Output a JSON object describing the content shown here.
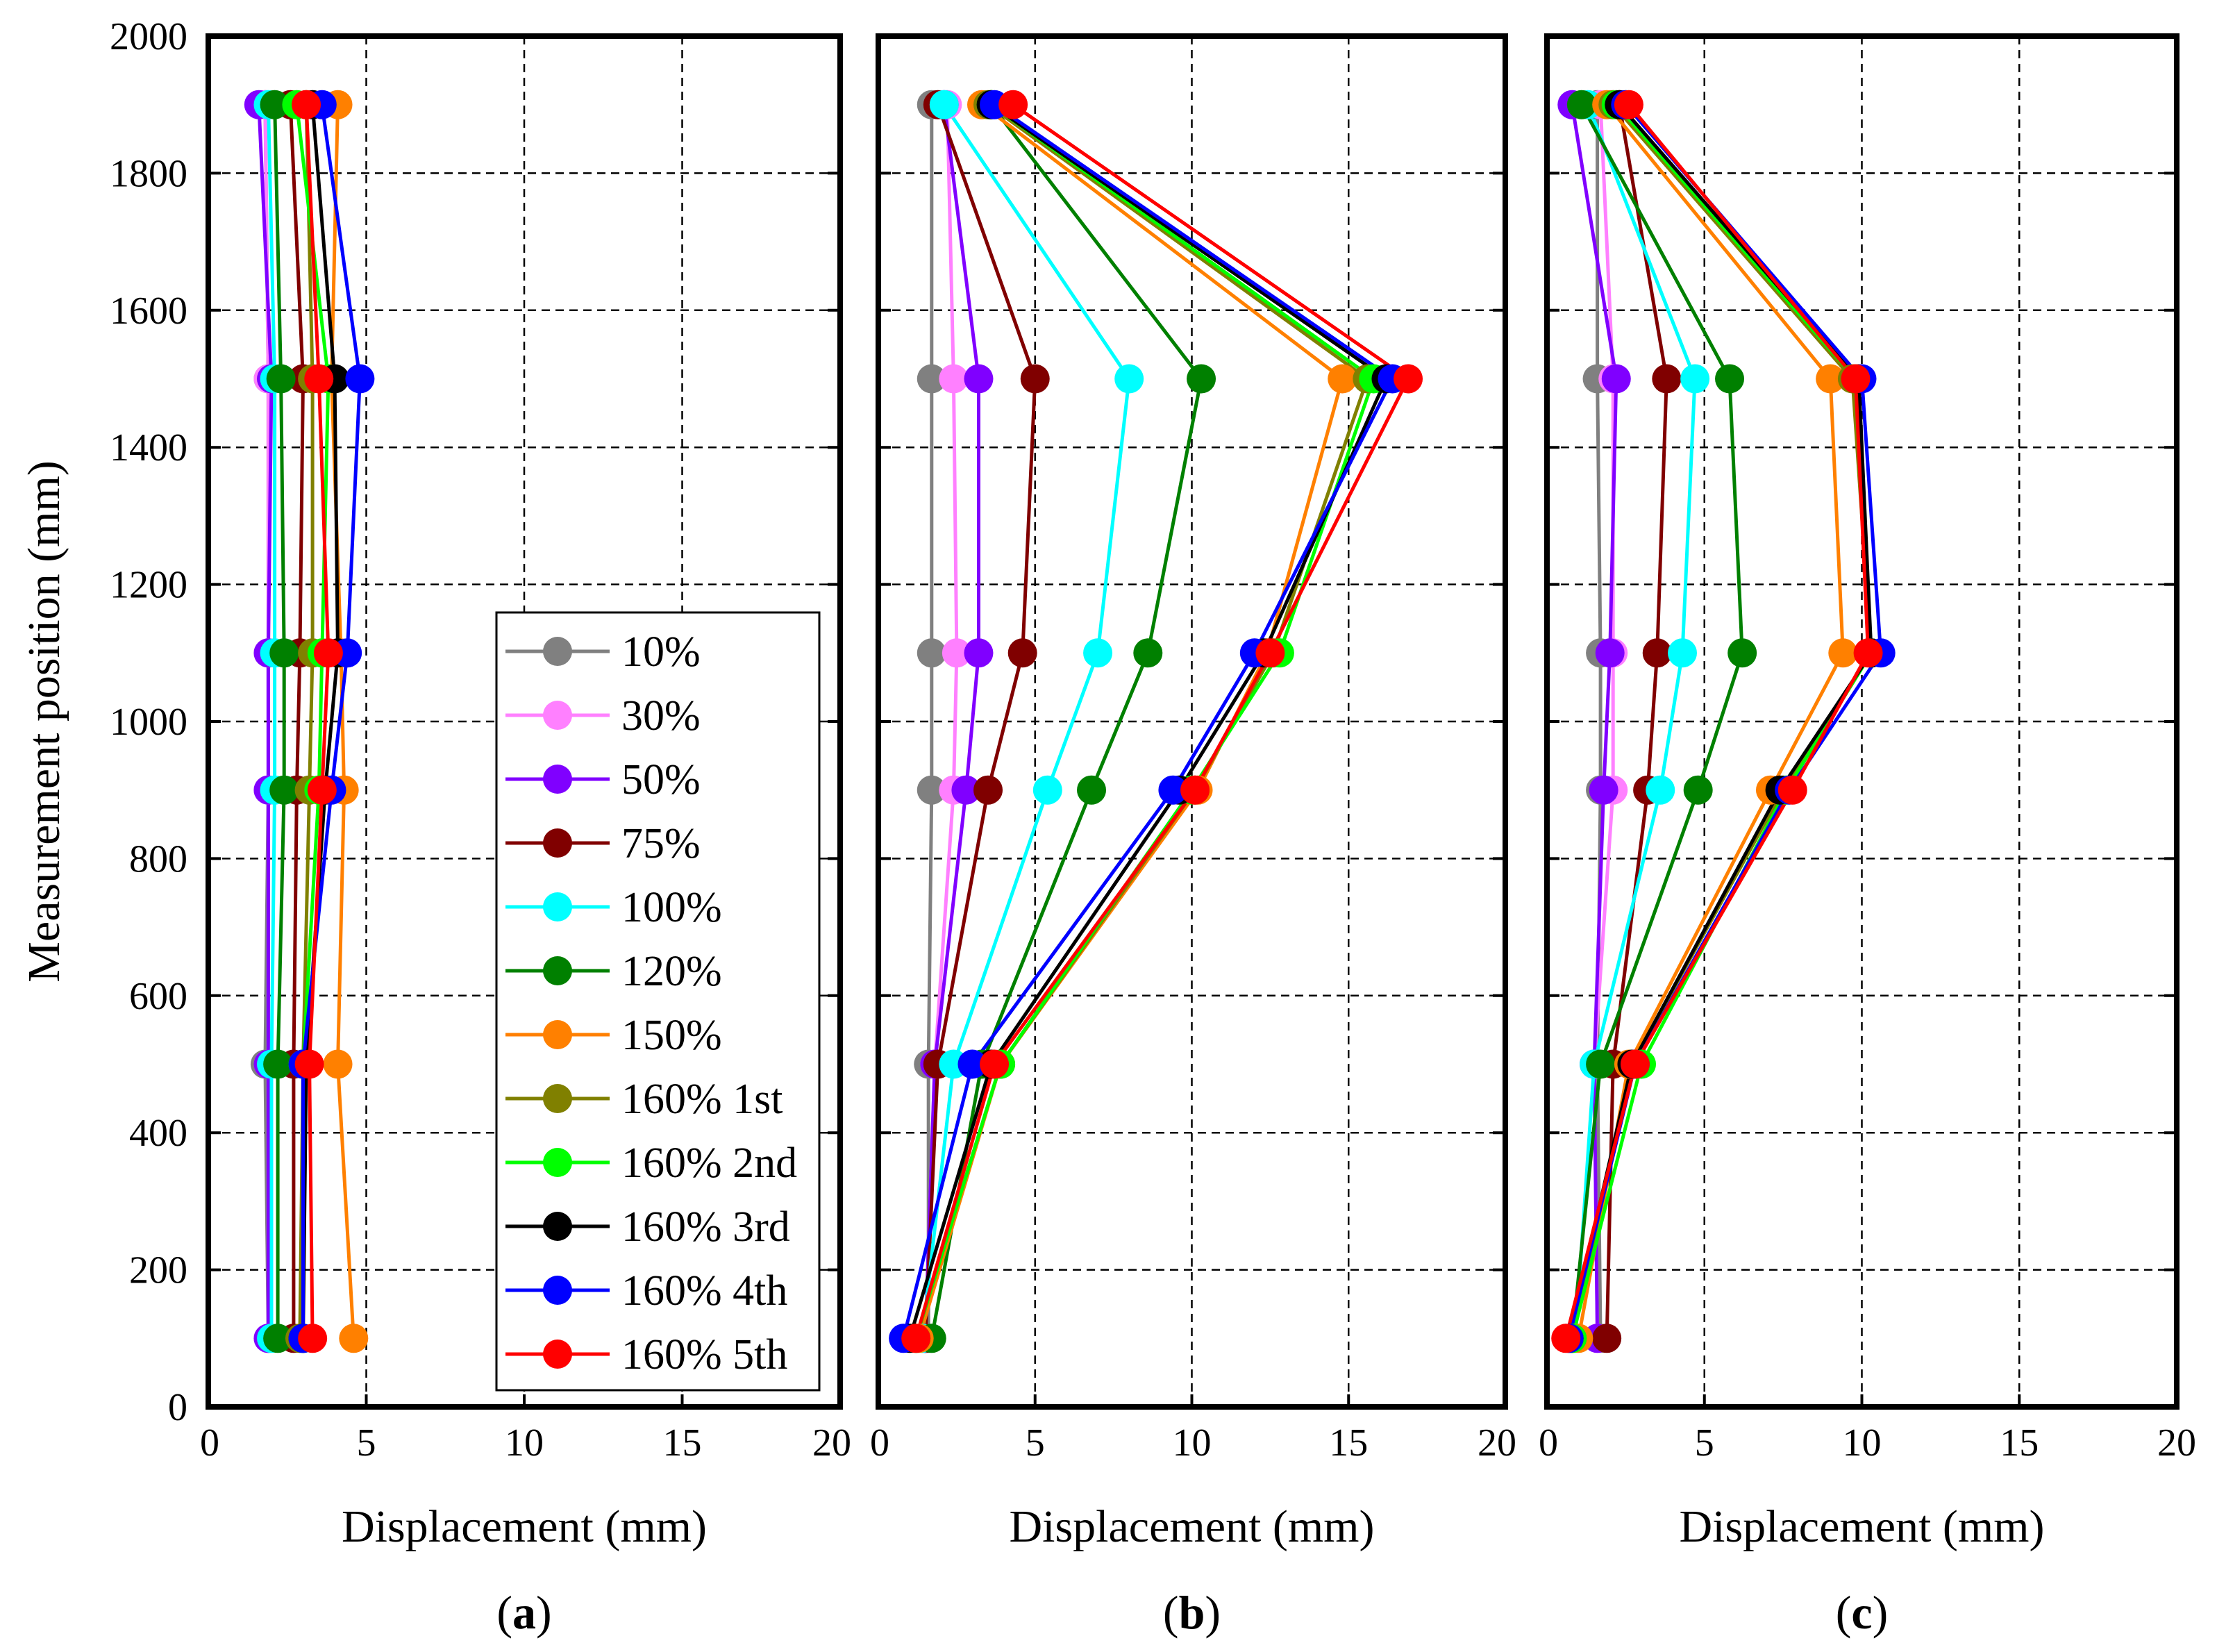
{
  "chart_data": [
    {
      "type": "line",
      "panel_label": "a",
      "xlabel": "Displacement (mm)",
      "ylabel": "Measurement position (mm)",
      "xlim": [
        0,
        20
      ],
      "ylim": [
        0,
        2000
      ],
      "x_ticks": [
        "0",
        "5",
        "10",
        "15",
        "20"
      ],
      "y_ticks": [
        "0",
        "200",
        "400",
        "600",
        "800",
        "1000",
        "1200",
        "1400",
        "1600",
        "1800",
        "2000"
      ],
      "grid": true,
      "legend_position": "bottom-right",
      "positions": [
        100,
        500,
        900,
        1100,
        1500,
        1900
      ],
      "series": [
        {
          "name": "10%",
          "color": "#808080",
          "values": [
            1.9,
            1.8,
            1.9,
            1.9,
            1.9,
            1.8
          ]
        },
        {
          "name": "30%",
          "color": "#ff80ff",
          "values": [
            1.9,
            1.9,
            1.9,
            1.9,
            1.9,
            1.8
          ]
        },
        {
          "name": "50%",
          "color": "#8000ff",
          "values": [
            1.9,
            1.9,
            1.9,
            1.9,
            2.0,
            1.6
          ]
        },
        {
          "name": "75%",
          "color": "#800000",
          "values": [
            2.7,
            2.7,
            2.8,
            2.9,
            3.0,
            2.6
          ]
        },
        {
          "name": "100%",
          "color": "#00ffff",
          "values": [
            2.0,
            2.0,
            2.1,
            2.1,
            2.1,
            1.9
          ]
        },
        {
          "name": "120%",
          "color": "#008000",
          "values": [
            2.2,
            2.2,
            2.4,
            2.4,
            2.3,
            2.1
          ]
        },
        {
          "name": "150%",
          "color": "#ff8000",
          "values": [
            4.6,
            4.1,
            4.3,
            4.2,
            3.9,
            4.1
          ]
        },
        {
          "name": "160% 1st",
          "color": "#808000",
          "values": [
            2.9,
            3.0,
            3.2,
            3.3,
            3.3,
            3.1
          ]
        },
        {
          "name": "160% 2nd",
          "color": "#00ff00",
          "values": [
            3.0,
            3.0,
            3.5,
            3.6,
            3.8,
            2.8
          ]
        },
        {
          "name": "160% 3rd",
          "color": "#000000",
          "values": [
            3.0,
            3.1,
            3.7,
            4.1,
            4.0,
            3.3
          ]
        },
        {
          "name": "160% 4th",
          "color": "#0000ff",
          "values": [
            3.0,
            3.0,
            3.9,
            4.4,
            4.8,
            3.6
          ]
        },
        {
          "name": "160% 5th",
          "color": "#ff0000",
          "values": [
            3.3,
            3.2,
            3.6,
            3.8,
            3.5,
            3.1
          ]
        }
      ]
    },
    {
      "type": "line",
      "panel_label": "b",
      "xlabel": "Displacement (mm)",
      "ylabel": "",
      "xlim": [
        0,
        20
      ],
      "ylim": [
        0,
        2000
      ],
      "x_ticks": [
        "0",
        "5",
        "10",
        "15",
        "20"
      ],
      "grid": true,
      "positions": [
        100,
        500,
        900,
        1100,
        1500,
        1900
      ],
      "series": [
        {
          "name": "10%",
          "color": "#808080",
          "values": [
            1.6,
            1.6,
            1.7,
            1.7,
            1.7,
            1.7
          ]
        },
        {
          "name": "30%",
          "color": "#ff80ff",
          "values": [
            1.5,
            1.8,
            2.4,
            2.5,
            2.4,
            2.2
          ]
        },
        {
          "name": "50%",
          "color": "#8000ff",
          "values": [
            1.5,
            1.8,
            2.8,
            3.2,
            3.2,
            2.1
          ]
        },
        {
          "name": "75%",
          "color": "#800000",
          "values": [
            1.5,
            1.9,
            3.5,
            4.6,
            5.0,
            1.9
          ]
        },
        {
          "name": "100%",
          "color": "#00ffff",
          "values": [
            1.4,
            2.4,
            5.4,
            7.0,
            8.0,
            2.1
          ]
        },
        {
          "name": "120%",
          "color": "#008000",
          "values": [
            1.7,
            3.3,
            6.8,
            8.6,
            10.3,
            3.6
          ]
        },
        {
          "name": "150%",
          "color": "#ff8000",
          "values": [
            1.3,
            3.9,
            10.2,
            12.4,
            14.8,
            3.3
          ]
        },
        {
          "name": "160% 1st",
          "color": "#808000",
          "values": [
            1.2,
            3.9,
            10.1,
            12.6,
            15.6,
            3.5
          ]
        },
        {
          "name": "160% 2nd",
          "color": "#00ff00",
          "values": [
            1.2,
            3.9,
            10.0,
            12.8,
            15.8,
            3.6
          ]
        },
        {
          "name": "160% 3rd",
          "color": "#000000",
          "values": [
            1.0,
            3.6,
            9.6,
            12.3,
            16.2,
            3.6
          ]
        },
        {
          "name": "160% 4th",
          "color": "#0000ff",
          "values": [
            0.8,
            3.0,
            9.4,
            12.0,
            16.4,
            3.7
          ]
        },
        {
          "name": "160% 5th",
          "color": "#ff0000",
          "values": [
            1.2,
            3.7,
            10.1,
            12.5,
            16.9,
            4.3
          ]
        }
      ]
    },
    {
      "type": "line",
      "panel_label": "c",
      "xlabel": "Displacement (mm)",
      "ylabel": "",
      "xlim": [
        0,
        20
      ],
      "ylim": [
        0,
        2000
      ],
      "x_ticks": [
        "0",
        "5",
        "10",
        "15",
        "20"
      ],
      "grid": true,
      "positions": [
        100,
        500,
        900,
        1100,
        1500,
        1900
      ],
      "series": [
        {
          "name": "10%",
          "color": "#808080",
          "values": [
            1.7,
            1.6,
            1.7,
            1.7,
            1.6,
            1.6
          ]
        },
        {
          "name": "30%",
          "color": "#ff80ff",
          "values": [
            1.6,
            1.5,
            2.1,
            2.1,
            2.1,
            1.7
          ]
        },
        {
          "name": "50%",
          "color": "#8000ff",
          "values": [
            1.6,
            1.5,
            1.8,
            2.0,
            2.2,
            0.8
          ]
        },
        {
          "name": "75%",
          "color": "#800000",
          "values": [
            1.9,
            2.1,
            3.2,
            3.5,
            3.8,
            2.3
          ]
        },
        {
          "name": "100%",
          "color": "#00ffff",
          "values": [
            0.9,
            1.5,
            3.6,
            4.3,
            4.7,
            1.3
          ]
        },
        {
          "name": "120%",
          "color": "#008000",
          "values": [
            0.8,
            1.7,
            4.8,
            6.2,
            5.8,
            1.1
          ]
        },
        {
          "name": "150%",
          "color": "#ff8000",
          "values": [
            1.0,
            2.6,
            7.1,
            9.4,
            9.0,
            1.9
          ]
        },
        {
          "name": "160% 1st",
          "color": "#808000",
          "values": [
            0.8,
            2.7,
            7.5,
            10.3,
            9.7,
            2.1
          ]
        },
        {
          "name": "160% 2nd",
          "color": "#00ff00",
          "values": [
            0.8,
            3.0,
            7.6,
            10.3,
            9.8,
            2.2
          ]
        },
        {
          "name": "160% 3rd",
          "color": "#000000",
          "values": [
            0.7,
            2.7,
            7.4,
            10.3,
            9.9,
            2.3
          ]
        },
        {
          "name": "160% 4th",
          "color": "#0000ff",
          "values": [
            0.7,
            2.8,
            7.7,
            10.6,
            10.0,
            2.5
          ]
        },
        {
          "name": "160% 5th",
          "color": "#ff0000",
          "values": [
            0.6,
            2.8,
            7.8,
            10.2,
            9.8,
            2.6
          ]
        }
      ]
    }
  ]
}
